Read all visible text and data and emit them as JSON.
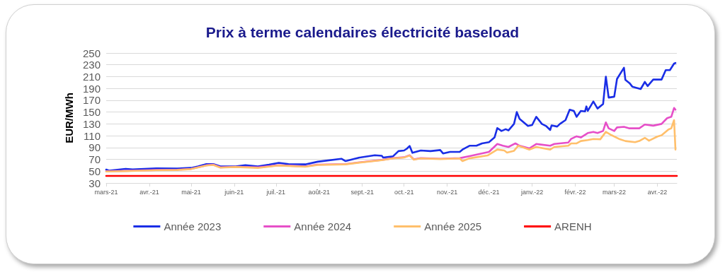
{
  "chart_data": {
    "type": "line",
    "title": "Prix à terme calendaires électricité baseload",
    "ylabel": "EUR/MWh",
    "xlim": [
      "2021-03-01",
      "2022-04-15"
    ],
    "xticks": [
      {
        "value": "2021-03-01",
        "label": "mars-21"
      },
      {
        "value": "2021-04-01",
        "label": "avr.-21"
      },
      {
        "value": "2021-05-01",
        "label": "mai-21"
      },
      {
        "value": "2021-06-01",
        "label": "juin-21"
      },
      {
        "value": "2021-07-01",
        "label": "juil.-21"
      },
      {
        "value": "2021-08-01",
        "label": "août-21"
      },
      {
        "value": "2021-09-01",
        "label": "sept.-21"
      },
      {
        "value": "2021-10-01",
        "label": "oct.-21"
      },
      {
        "value": "2021-11-01",
        "label": "nov.-21"
      },
      {
        "value": "2021-12-01",
        "label": "déc.-21"
      },
      {
        "value": "2022-01-01",
        "label": "janv.-22"
      },
      {
        "value": "2022-02-01",
        "label": "févr.-22"
      },
      {
        "value": "2022-03-01",
        "label": "mars-22"
      },
      {
        "value": "2022-04-01",
        "label": "avr.-22"
      }
    ],
    "ylim": [
      30,
      250
    ],
    "yticks": [
      30,
      50,
      70,
      90,
      110,
      130,
      150,
      170,
      190,
      210,
      230,
      250
    ],
    "grid": "y",
    "legend": "bottom",
    "marker": "none",
    "line_style": "solid",
    "series": [
      {
        "name": "Année 2023",
        "color": "#1a2ee6",
        "x": [
          "2021-03-01",
          "2021-03-03",
          "2021-03-15",
          "2021-03-20",
          "2021-04-06",
          "2021-04-21",
          "2021-05-01",
          "2021-05-06",
          "2021-05-12",
          "2021-05-17",
          "2021-05-22",
          "2021-06-02",
          "2021-06-09",
          "2021-06-18",
          "2021-06-26",
          "2021-07-03",
          "2021-07-10",
          "2021-07-22",
          "2021-07-31",
          "2021-08-17",
          "2021-08-20",
          "2021-08-30",
          "2021-09-10",
          "2021-09-15",
          "2021-09-16",
          "2021-09-23",
          "2021-09-27",
          "2021-10-01",
          "2021-10-03",
          "2021-10-05",
          "2021-10-07",
          "2021-10-13",
          "2021-10-20",
          "2021-10-27",
          "2021-10-29",
          "2021-11-03",
          "2021-11-10",
          "2021-11-12",
          "2021-11-17",
          "2021-11-22",
          "2021-11-26",
          "2021-12-01",
          "2021-12-05",
          "2021-12-07",
          "2021-12-10",
          "2021-12-13",
          "2021-12-15",
          "2021-12-19",
          "2021-12-21",
          "2021-12-23",
          "2021-12-29",
          "2022-01-01",
          "2022-01-04",
          "2022-01-08",
          "2022-01-11",
          "2022-01-14",
          "2022-01-15",
          "2022-01-19",
          "2022-01-21",
          "2022-01-25",
          "2022-01-28",
          "2022-01-31",
          "2022-02-02",
          "2022-02-05",
          "2022-02-08",
          "2022-02-09",
          "2022-02-10",
          "2022-02-14",
          "2022-02-17",
          "2022-02-21",
          "2022-02-23",
          "2022-02-25",
          "2022-03-01",
          "2022-03-03",
          "2022-03-08",
          "2022-03-09",
          "2022-03-12",
          "2022-03-14",
          "2022-03-20",
          "2022-03-23",
          "2022-03-25",
          "2022-03-29",
          "2022-04-04",
          "2022-04-07",
          "2022-04-10",
          "2022-04-13",
          "2022-04-14"
        ],
        "values": [
          52.7,
          51,
          54,
          53,
          54.7,
          54.5,
          55.5,
          58,
          62,
          62,
          58,
          58,
          60,
          58,
          61,
          64,
          62,
          61.5,
          66,
          71,
          67,
          73,
          77,
          76,
          73,
          75,
          84,
          85,
          88,
          92.7,
          81,
          85,
          84,
          85.7,
          80,
          82.6,
          82.6,
          86.6,
          93,
          93,
          97,
          99,
          107,
          123,
          118,
          121,
          119,
          130,
          150,
          138.5,
          126.5,
          128,
          142,
          130,
          126.5,
          119.7,
          127.5,
          125.5,
          130,
          136.4,
          154,
          152,
          142,
          152,
          151,
          159.5,
          152,
          168,
          156,
          163.5,
          210,
          174.5,
          176,
          206,
          225,
          204.6,
          199,
          193,
          189,
          201,
          194,
          205,
          205,
          221,
          221,
          232,
          233
        ]
      },
      {
        "name": "Année 2024",
        "color": "#e64fc8",
        "x": [
          "2021-03-01",
          "2021-03-15",
          "2021-04-06",
          "2021-04-21",
          "2021-05-01",
          "2021-05-12",
          "2021-05-17",
          "2021-05-22",
          "2021-06-02",
          "2021-06-18",
          "2021-07-03",
          "2021-07-22",
          "2021-07-31",
          "2021-08-20",
          "2021-08-30",
          "2021-09-15",
          "2021-09-23",
          "2021-10-01",
          "2021-10-05",
          "2021-10-08",
          "2021-10-13",
          "2021-10-27",
          "2021-11-10",
          "2021-11-17",
          "2021-12-01",
          "2021-12-07",
          "2021-12-11",
          "2021-12-15",
          "2021-12-20",
          "2021-12-23",
          "2021-12-30",
          "2022-01-04",
          "2022-01-14",
          "2022-01-17",
          "2022-01-27",
          "2022-01-29",
          "2022-02-02",
          "2022-02-05",
          "2022-02-10",
          "2022-02-14",
          "2022-02-17",
          "2022-02-21",
          "2022-02-23",
          "2022-02-25",
          "2022-03-01",
          "2022-03-03",
          "2022-03-08",
          "2022-03-12",
          "2022-03-19",
          "2022-03-23",
          "2022-03-29",
          "2022-04-04",
          "2022-04-08",
          "2022-04-11",
          "2022-04-13",
          "2022-04-14"
        ],
        "values": [
          50,
          50.5,
          52,
          52.5,
          54,
          60,
          61,
          56.5,
          57.5,
          56.5,
          60,
          58,
          61,
          62,
          65,
          69,
          72,
          73.5,
          77,
          70,
          72,
          71,
          72,
          75.5,
          82.6,
          96,
          93,
          91,
          97,
          93,
          88.6,
          96,
          93,
          96,
          98.5,
          104.5,
          109,
          107,
          114.5,
          116.5,
          114.5,
          118,
          132.5,
          122.5,
          118,
          124,
          125,
          122.5,
          122.5,
          129,
          127,
          130,
          139.7,
          142,
          157,
          154
        ]
      },
      {
        "name": "Année 2025",
        "color": "#ffbf6b",
        "x": [
          "2021-03-01",
          "2021-03-15",
          "2021-04-06",
          "2021-04-21",
          "2021-05-01",
          "2021-05-12",
          "2021-05-17",
          "2021-05-22",
          "2021-06-02",
          "2021-06-18",
          "2021-07-03",
          "2021-07-22",
          "2021-07-31",
          "2021-08-20",
          "2021-08-30",
          "2021-09-15",
          "2021-09-23",
          "2021-10-01",
          "2021-10-05",
          "2021-10-08",
          "2021-10-13",
          "2021-10-27",
          "2021-11-10",
          "2021-11-12",
          "2021-11-17",
          "2021-11-30",
          "2021-12-07",
          "2021-12-12",
          "2021-12-14",
          "2021-12-19",
          "2021-12-22",
          "2021-12-30",
          "2022-01-04",
          "2022-01-14",
          "2022-01-17",
          "2022-01-27",
          "2022-01-29",
          "2022-02-02",
          "2022-02-05",
          "2022-02-10",
          "2022-02-14",
          "2022-02-19",
          "2022-02-23",
          "2022-02-27",
          "2022-03-05",
          "2022-03-09",
          "2022-03-16",
          "2022-03-19",
          "2022-03-23",
          "2022-03-26",
          "2022-04-01",
          "2022-04-04",
          "2022-04-09",
          "2022-04-11",
          "2022-04-13",
          "2022-04-14"
        ],
        "values": [
          49.5,
          50,
          51.5,
          52,
          53.5,
          59.5,
          60.5,
          56,
          57,
          55.5,
          59.5,
          57.5,
          60.5,
          61.5,
          64.5,
          68.5,
          71.5,
          73,
          76.5,
          69.5,
          71.5,
          70.5,
          71.5,
          67,
          71.7,
          76.6,
          86.6,
          85,
          81.5,
          84.5,
          93,
          86.6,
          91,
          86.6,
          91,
          93,
          97,
          97,
          101,
          102.6,
          104.5,
          104,
          116.5,
          111,
          104,
          101,
          99,
          101,
          106.5,
          101.6,
          108.6,
          110.6,
          120.5,
          122.5,
          136.4,
          86.6
        ]
      },
      {
        "name": "ARENH",
        "color": "#ff0000",
        "x": [
          "2021-03-01",
          "2022-04-15"
        ],
        "values": [
          42,
          42
        ]
      }
    ]
  }
}
